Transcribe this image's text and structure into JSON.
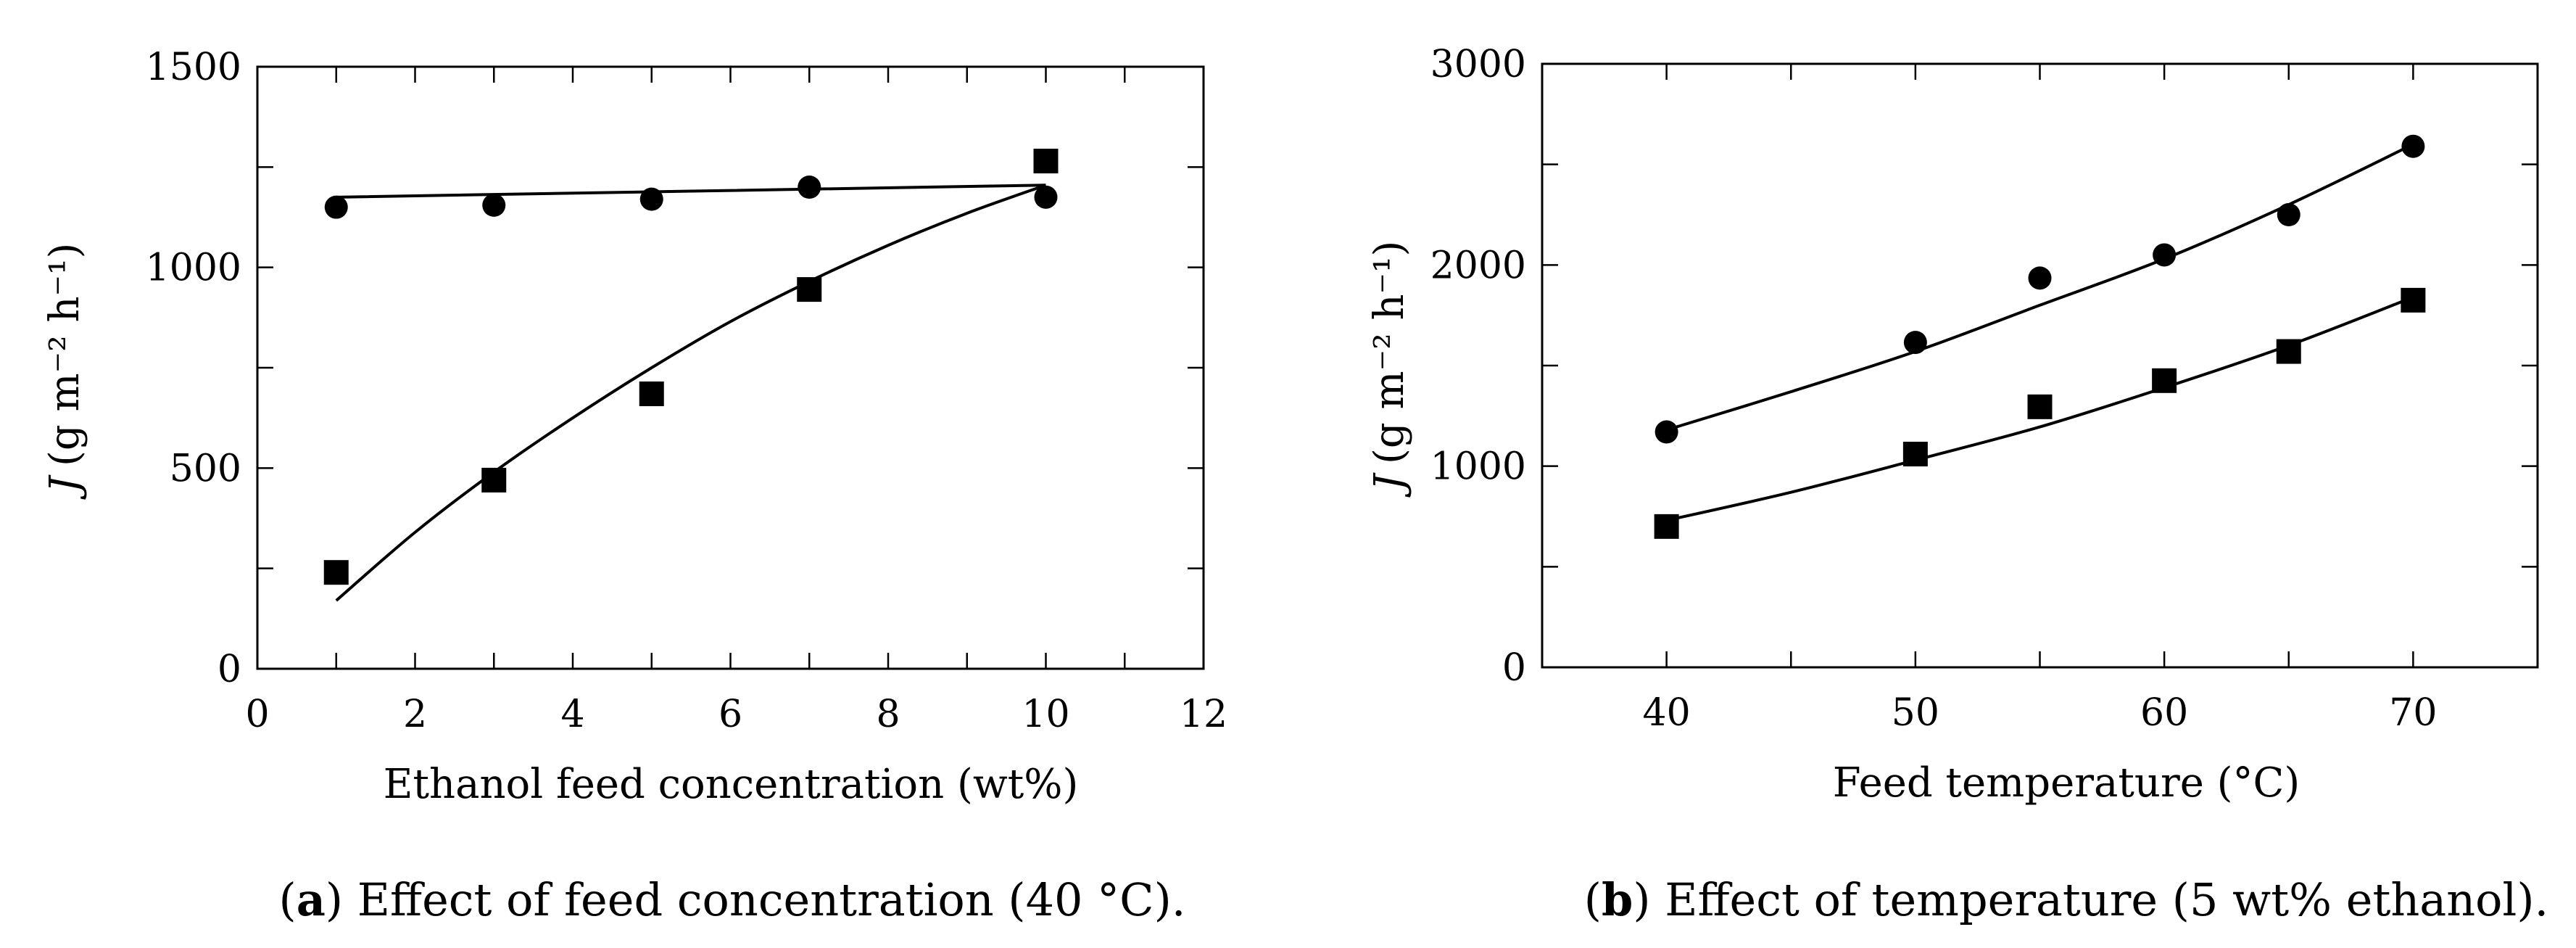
{
  "chart_data": [
    {
      "type": "scatter",
      "panel_tag": "a",
      "caption_text": "Effect of feed concentration (40 °C).",
      "xlabel": "Ethanol feed concentration (wt%)",
      "ylabel_symbol": "J",
      "ylabel_units": "(g m⁻² h⁻¹)",
      "xlim": [
        0,
        12
      ],
      "ylim": [
        0,
        1500
      ],
      "xticks": [
        "0",
        "2",
        "4",
        "6",
        "8",
        "10",
        "12"
      ],
      "yticks": [
        "0",
        "500",
        "1000",
        "1500"
      ],
      "series": [
        {
          "name": "circles",
          "marker": "circle",
          "x": [
            1,
            3,
            5,
            7,
            10
          ],
          "values": [
            1150,
            1155,
            1170,
            1200,
            1175
          ],
          "fit": {
            "x": [
              1,
              10
            ],
            "y": [
              1175,
              1205
            ]
          }
        },
        {
          "name": "squares",
          "marker": "square",
          "x": [
            1,
            3,
            5,
            7,
            10
          ],
          "values": [
            240,
            470,
            685,
            945,
            1265
          ],
          "fit": {
            "x": [
              1,
              2,
              3,
              4,
              5,
              6,
              7,
              8,
              9,
              10
            ],
            "y": [
              170,
              340,
              490,
              625,
              750,
              865,
              965,
              1055,
              1135,
              1205
            ]
          }
        }
      ]
    },
    {
      "type": "scatter",
      "panel_tag": "b",
      "caption_text": "Effect of temperature (5 wt% ethanol).",
      "xlabel": "Feed temperature (°C)",
      "ylabel_symbol": "J",
      "ylabel_units": "(g m⁻² h⁻¹)",
      "xlim": [
        35,
        75
      ],
      "ylim": [
        0,
        3000
      ],
      "xticks": [
        "40",
        "50",
        "60",
        "70"
      ],
      "yticks": [
        "0",
        "1000",
        "2000",
        "3000"
      ],
      "series": [
        {
          "name": "circles",
          "marker": "circle",
          "x": [
            40,
            50,
            55,
            60,
            65,
            70
          ],
          "values": [
            1170,
            1615,
            1935,
            2050,
            2250,
            2590
          ],
          "fit": {
            "x": [
              40,
              45,
              50,
              55,
              60,
              65,
              70
            ],
            "y": [
              1180,
              1370,
              1570,
              1800,
              2030,
              2300,
              2600
            ]
          }
        },
        {
          "name": "squares",
          "marker": "square",
          "x": [
            40,
            50,
            55,
            60,
            65,
            70
          ],
          "values": [
            700,
            1060,
            1295,
            1425,
            1570,
            1825
          ],
          "fit": {
            "x": [
              40,
              45,
              50,
              55,
              60,
              65,
              70
            ],
            "y": [
              730,
              870,
              1030,
              1195,
              1390,
              1600,
              1840
            ]
          }
        }
      ]
    }
  ]
}
